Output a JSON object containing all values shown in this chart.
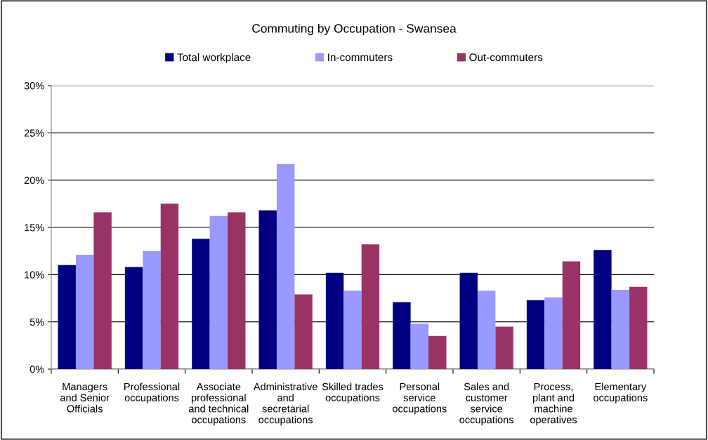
{
  "chart_data": {
    "type": "bar",
    "title": "Commuting by Occupation - Swansea",
    "categories": [
      "Managers\nand Senior\nOfficials",
      "Professional\noccupations",
      "Associate\nprofessional\nand technical\noccupations",
      "Administrative\nand\nsecretarial\noccupations",
      "Skilled trades\noccupations",
      "Personal\nservice\noccupations",
      "Sales and\ncustomer\nservice\noccupations",
      "Process,\nplant and\nmachine\noperatives",
      "Elementary\noccupations"
    ],
    "series": [
      {
        "name": "Total workplace",
        "color": "#000080",
        "values": [
          11.0,
          10.8,
          13.8,
          16.8,
          10.2,
          7.1,
          10.2,
          7.3,
          12.6
        ]
      },
      {
        "name": "In-commuters",
        "color": "#9999ff",
        "values": [
          12.1,
          12.5,
          16.2,
          21.7,
          8.3,
          4.8,
          8.3,
          7.6,
          8.4
        ]
      },
      {
        "name": "Out-commuters",
        "color": "#993366",
        "values": [
          16.6,
          17.5,
          16.6,
          7.9,
          13.2,
          3.5,
          4.5,
          11.4,
          8.7
        ]
      }
    ],
    "ylim": [
      0,
      30
    ],
    "yticks": [
      {
        "value": 0,
        "label": "0%"
      },
      {
        "value": 5,
        "label": "5%"
      },
      {
        "value": 10,
        "label": "10%"
      },
      {
        "value": 15,
        "label": "15%"
      },
      {
        "value": 20,
        "label": "20%"
      },
      {
        "value": 25,
        "label": "25%"
      },
      {
        "value": 30,
        "label": "30%"
      }
    ],
    "grid": "y",
    "legend": "top"
  }
}
